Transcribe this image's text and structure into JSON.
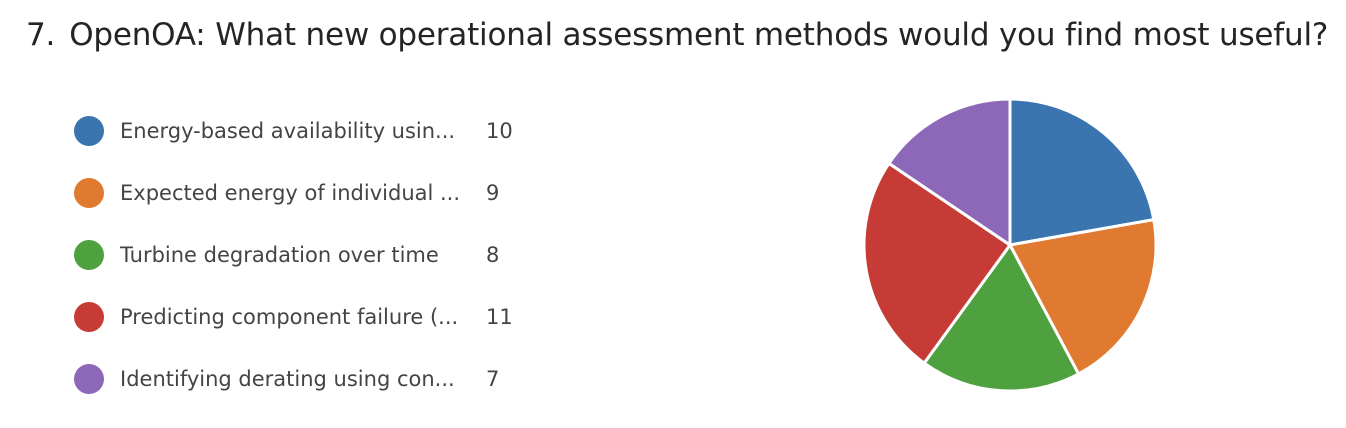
{
  "question": {
    "number": "7.",
    "text": "OpenOA: What new operational assessment methods would you find most useful?"
  },
  "chart_data": {
    "type": "pie",
    "categories": [
      "Energy-based availability usin...",
      "Expected energy of individual ...",
      "Turbine degradation over time",
      "Predicting component failure (...",
      "Identifying derating using con..."
    ],
    "values": [
      10,
      9,
      8,
      11,
      7
    ],
    "colors": [
      "#3a75b0",
      "#e07a30",
      "#4fa03f",
      "#c63b35",
      "#8e68b8"
    ],
    "legend_position": "left"
  }
}
